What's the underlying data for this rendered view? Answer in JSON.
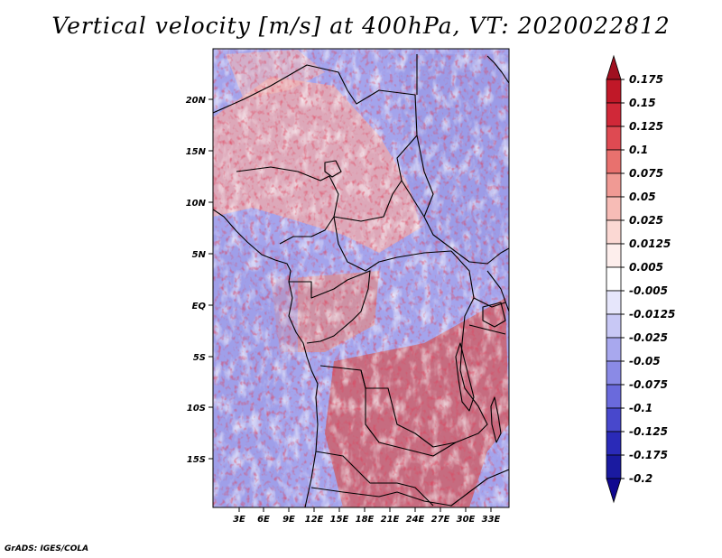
{
  "title": "Vertical velocity [m/s] at 400hPa, VT: 2020022812",
  "credit": "GrADS: IGES/COLA",
  "map": {
    "lat_labels": [
      "20N",
      "15N",
      "10N",
      "5N",
      "EQ",
      "5S",
      "10S",
      "15S"
    ],
    "lon_labels": [
      "3E",
      "6E",
      "9E",
      "12E",
      "15E",
      "18E",
      "21E",
      "24E",
      "27E",
      "30E",
      "33E"
    ]
  },
  "colorbar": {
    "labels": [
      "0.175",
      "0.15",
      "0.125",
      "0.1",
      "0.075",
      "0.05",
      "0.025",
      "0.0125",
      "0.005",
      "-0.005",
      "-0.0125",
      "-0.025",
      "-0.05",
      "-0.075",
      "-0.1",
      "-0.125",
      "-0.175",
      "-0.2"
    ],
    "colors": [
      "#a01020",
      "#c01828",
      "#d02838",
      "#de4a52",
      "#e8716e",
      "#f09a94",
      "#f7bcb6",
      "#fbd8d3",
      "#fdeeec",
      "#ffffff",
      "#e6e6fb",
      "#c8c8f5",
      "#a8a8ee",
      "#8a8ae6",
      "#6a6adc",
      "#4848cc",
      "#2a2ab8",
      "#1a1aa0",
      "#100890"
    ]
  }
}
